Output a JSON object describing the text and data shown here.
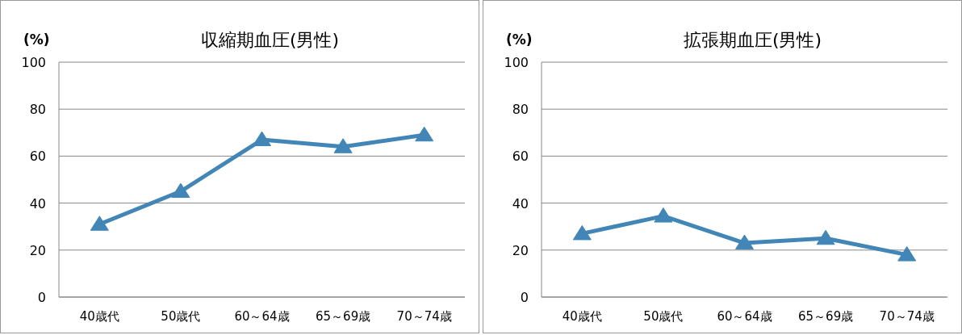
{
  "chart_data": [
    {
      "type": "line",
      "title": "収縮期血圧(男性)",
      "ylabel": "(%)",
      "categories": [
        "40歳代",
        "50歳代",
        "60～64歳",
        "65～69歳",
        "70～74歳"
      ],
      "series": [
        {
          "color": "#4186b6",
          "values": [
            31,
            45,
            67,
            64,
            69
          ]
        }
      ],
      "ylim": [
        0,
        100
      ],
      "yticks": [
        0,
        20,
        40,
        60,
        80,
        100
      ],
      "grid": "y",
      "marker": "triangle"
    },
    {
      "type": "line",
      "title": "拡張期血圧(男性)",
      "ylabel": "(%)",
      "categories": [
        "40歳代",
        "50歳代",
        "60～64歳",
        "65～69歳",
        "70～74歳"
      ],
      "series": [
        {
          "color": "#4186b6",
          "values": [
            27,
            34.5,
            23,
            25,
            18
          ]
        }
      ],
      "ylim": [
        0,
        100
      ],
      "yticks": [
        0,
        20,
        40,
        60,
        80,
        100
      ],
      "grid": "y",
      "marker": "triangle"
    }
  ]
}
